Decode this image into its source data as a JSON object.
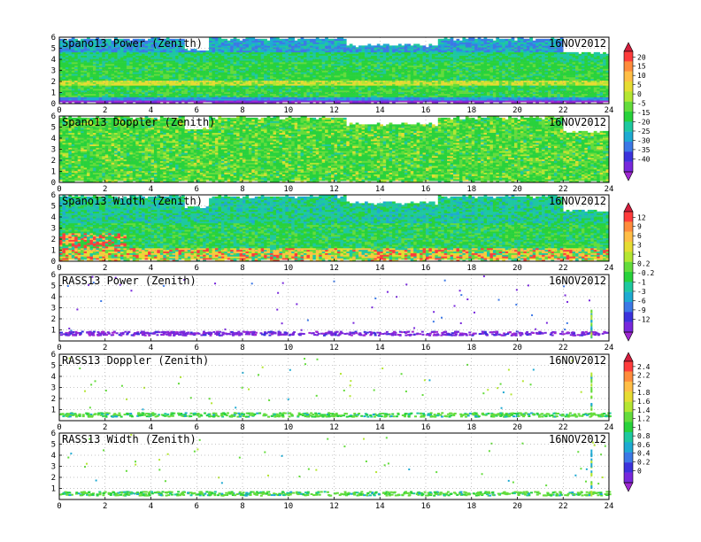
{
  "chart_data": [
    {
      "type": "heatmap",
      "title": "Spano13 Power (Zenith)",
      "date": "16NOV2012",
      "x_range": [
        0,
        24
      ],
      "x_ticks": [
        "0",
        "2",
        "4",
        "6",
        "8",
        "10",
        "12",
        "14",
        "16",
        "18",
        "20",
        "22",
        "24"
      ],
      "y_range": [
        0,
        6
      ],
      "y_ticks": [
        "0",
        "1",
        "2",
        "3",
        "4",
        "5",
        "6"
      ],
      "colorbar_group": 0,
      "pattern": "power",
      "description_values": {
        "dominant_value": -20,
        "band_near_2km_value": 0,
        "low_level_value": -35
      }
    },
    {
      "type": "heatmap",
      "title": "Spano13 Doppler (Zenith)",
      "date": "16NOV2012",
      "x_range": [
        0,
        24
      ],
      "x_ticks": [
        "0",
        "2",
        "4",
        "6",
        "8",
        "10",
        "12",
        "14",
        "16",
        "18",
        "20",
        "22",
        "24"
      ],
      "y_range": [
        0,
        6
      ],
      "y_ticks": [
        "0",
        "1",
        "2",
        "3",
        "4",
        "5",
        "6"
      ],
      "colorbar_group": 0,
      "pattern": "doppler",
      "description_values": {
        "dominant_value": -20,
        "streak_value": -10
      }
    },
    {
      "type": "heatmap",
      "title": "Spano13 Width (Zenith)",
      "date": "16NOV2012",
      "x_range": [
        0,
        24
      ],
      "x_ticks": [
        "0",
        "2",
        "4",
        "6",
        "8",
        "10",
        "12",
        "14",
        "16",
        "18",
        "20",
        "22",
        "24"
      ],
      "y_range": [
        0,
        6
      ],
      "y_ticks": [
        "0",
        "1",
        "2",
        "3",
        "4",
        "5",
        "6"
      ],
      "colorbar_group": 1,
      "pattern": "width",
      "description_values": {
        "dominant_value": -1,
        "low_level_high_value": 9
      }
    },
    {
      "type": "scatter",
      "title": "RASS13 Power (Zenith)",
      "date": "16NOV2012",
      "x_range": [
        0,
        24
      ],
      "x_ticks": [
        "0",
        "2",
        "4",
        "6",
        "8",
        "10",
        "12",
        "14",
        "16",
        "18",
        "20",
        "22",
        "24"
      ],
      "y_range": [
        0,
        6
      ],
      "y_ticks": [
        "1",
        "2",
        "3",
        "4",
        "5",
        "6"
      ],
      "colorbar_group": 1,
      "pattern": "rass_power",
      "description_values": {
        "band_height_km": 0.75,
        "band_value": -12,
        "spike_x": 23.2
      }
    },
    {
      "type": "scatter",
      "title": "RASS13 Doppler (Zenith)",
      "date": "16NOV2012",
      "x_range": [
        0,
        24
      ],
      "x_ticks": [
        "0",
        "2",
        "4",
        "6",
        "8",
        "10",
        "12",
        "14",
        "16",
        "18",
        "20",
        "22",
        "24"
      ],
      "y_range": [
        0,
        6
      ],
      "y_ticks": [
        "1",
        "2",
        "3",
        "4",
        "5",
        "6"
      ],
      "colorbar_group": 2,
      "pattern": "rass_doppler",
      "description_values": {
        "band_height_km": 0.6,
        "band_value": 1.2,
        "spike_x": 23.2
      }
    },
    {
      "type": "scatter",
      "title": "RASS13 Width (Zenith)",
      "date": "16NOV2012",
      "x_range": [
        0,
        24
      ],
      "x_ticks": [
        "0",
        "2",
        "4",
        "6",
        "8",
        "10",
        "12",
        "14",
        "16",
        "18",
        "20",
        "22",
        "24"
      ],
      "y_range": [
        0,
        6
      ],
      "y_ticks": [
        "1",
        "2",
        "3",
        "4",
        "5",
        "6"
      ],
      "colorbar_group": 2,
      "pattern": "rass_width",
      "description_values": {
        "band_height_km": 0.6,
        "band_value": 1.0,
        "spike_x": 23.2
      }
    }
  ],
  "colorbars": [
    {
      "labels": [
        "20",
        "15",
        "10",
        "5",
        "0",
        "-5",
        "-15",
        "-20",
        "-25",
        "-30",
        "-35",
        "-40"
      ],
      "colors": [
        "#d21e3c",
        "#ff3c3c",
        "#ff8c3c",
        "#ffbe46",
        "#e6dc32",
        "#b4e632",
        "#64dc3c",
        "#28d23c",
        "#1ec8a0",
        "#1eaad2",
        "#3c78e6",
        "#3c32dc",
        "#7828dc",
        "#a028d2"
      ]
    },
    {
      "labels": [
        "12",
        "9",
        "6",
        "3",
        "1",
        "0.2",
        "-0.2",
        "-1",
        "-3",
        "-6",
        "-9",
        "-12"
      ],
      "colors": [
        "#d21e3c",
        "#ff3c3c",
        "#ff8c3c",
        "#ffbe46",
        "#e6dc32",
        "#b4e632",
        "#64dc3c",
        "#28d23c",
        "#1ec8a0",
        "#1eaad2",
        "#3c78e6",
        "#3c32dc",
        "#7828dc",
        "#a028d2"
      ]
    },
    {
      "labels": [
        "2.4",
        "2.2",
        "2",
        "1.8",
        "1.6",
        "1.4",
        "1.2",
        "1",
        "0.8",
        "0.6",
        "0.4",
        "0.2",
        "0"
      ],
      "colors": [
        "#d21e3c",
        "#ff3c3c",
        "#ff8c3c",
        "#ffbe46",
        "#e6dc32",
        "#b4e632",
        "#64dc3c",
        "#28d23c",
        "#1ec8a0",
        "#1eaad2",
        "#3c78e6",
        "#3c32dc",
        "#7828dc",
        "#a028d2"
      ]
    }
  ]
}
